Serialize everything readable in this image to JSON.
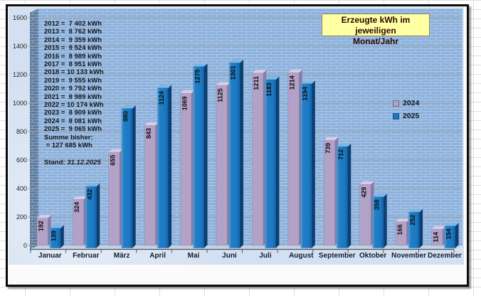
{
  "chart_title": {
    "line1": "Erzeugte kWh im jeweiligen",
    "line2": "Monat/Jahr"
  },
  "stand": {
    "label": "Stand: ",
    "date": "31.12.2025"
  },
  "chart_data": {
    "type": "bar",
    "style": "3d-column",
    "title": "Erzeugte kWh im jeweiligen Monat/Jahr",
    "categories": [
      "Januar",
      "Februar",
      "März",
      "April",
      "Mai",
      "Juni",
      "Juli",
      "August",
      "September",
      "Oktober",
      "November",
      "Dezember"
    ],
    "series": [
      {
        "name": "2024",
        "color": "#b2a2c8",
        "values": [
          192,
          324,
          655,
          843,
          1069,
          1125,
          1211,
          1214,
          739,
          429,
          166,
          114
        ]
      },
      {
        "name": "2025",
        "color": "#1b79c4",
        "values": [
          139,
          432,
          980,
          1124,
          1275,
          1301,
          1183,
          1154,
          712,
          359,
          252,
          154
        ]
      }
    ],
    "ylim": [
      0,
      1600
    ],
    "ytick_step": 200,
    "grid": true,
    "legend_position": "center-right",
    "annotations": {
      "yearly_totals_lines": [
        "2012 =  7 402 kWh",
        "2013 =  8 762 kWh",
        "2014 =  9 359 kWh",
        "2015 =  9 524 kWh",
        "2016 =  8 989 kWh",
        "2017 =  8 951 kWh",
        "2018 = 10 133 kWh",
        "2019 =  9 555 kWh",
        "2020 =  9 792 kWh",
        "2021 =  8 989 kWh",
        "2022 = 10 174 kWh",
        "2023 =  8 909 kWh",
        "2024 =  8 081 kWh",
        "2025 =  9 065 kWh",
        "Summe bisher:",
        " = 127 685 kWh"
      ],
      "yearly_totals": [
        {
          "year": 2012,
          "kwh": 7402
        },
        {
          "year": 2013,
          "kwh": 8762
        },
        {
          "year": 2014,
          "kwh": 9359
        },
        {
          "year": 2015,
          "kwh": 9524
        },
        {
          "year": 2016,
          "kwh": 8989
        },
        {
          "year": 2017,
          "kwh": 8951
        },
        {
          "year": 2018,
          "kwh": 10133
        },
        {
          "year": 2019,
          "kwh": 9555
        },
        {
          "year": 2020,
          "kwh": 9792
        },
        {
          "year": 2021,
          "kwh": 8989
        },
        {
          "year": 2022,
          "kwh": 10174
        },
        {
          "year": 2023,
          "kwh": 8909
        },
        {
          "year": 2024,
          "kwh": 8081
        },
        {
          "year": 2025,
          "kwh": 9065
        }
      ],
      "sum_label": "Summe bisher:",
      "sum_kwh": 127685,
      "stand": "Stand: 31.12.2025"
    }
  }
}
